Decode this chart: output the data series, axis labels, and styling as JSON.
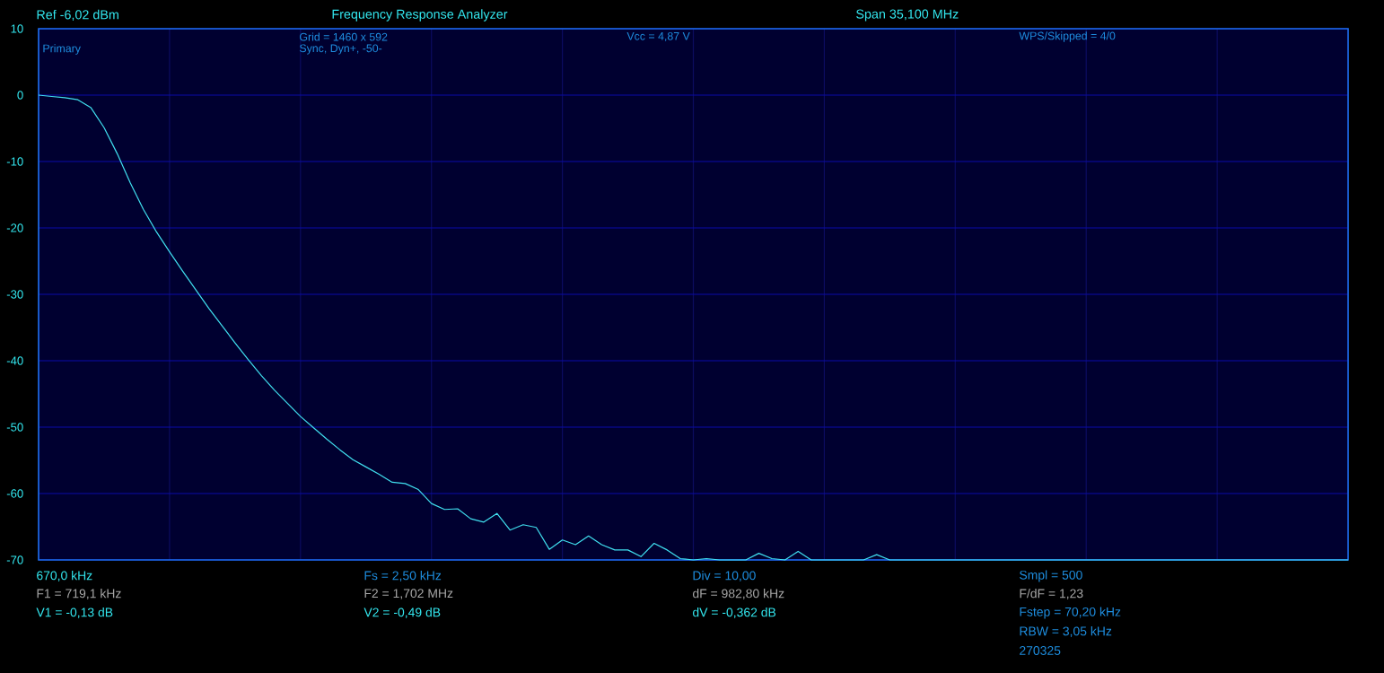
{
  "chart_data": {
    "type": "line",
    "title": "Frequency Response Analyzer",
    "annotations": [
      "Ref  -6,02 dBm",
      "Span 35,100 MHz",
      "Primary",
      "Grid = 1460 x 592",
      "Sync,  Dyn+,  -50-",
      "Vcc = 4,87 V",
      "WPS/Skipped  = 4/0",
      "670,0 kHz",
      "F1 = 719,1 kHz",
      "V1 = -0,13 dB",
      "Fs = 2,50 kHz",
      "F2 = 1,702 MHz",
      "V2 = -0,49 dB",
      "Div = 10,00",
      "dF = 982,80 kHz",
      "dV = -0,362 dB",
      "Smpl = 500",
      "F/dF = 1,23",
      "Fstep = 70,20 kHz",
      "RBW = 3,05 kHz",
      "270325"
    ],
    "categories": [
      null,
      null,
      null,
      null,
      null,
      null,
      null,
      null,
      null,
      null,
      null,
      null,
      null,
      null,
      null,
      null,
      null,
      null,
      null,
      null,
      null,
      null,
      null,
      null,
      null,
      null,
      null,
      null,
      null,
      null,
      null,
      null,
      null,
      null,
      null,
      null,
      null,
      null,
      null,
      null,
      null,
      null,
      null,
      null,
      null,
      null,
      null,
      null,
      null,
      null,
      null,
      null,
      null,
      null,
      null,
      null,
      null,
      null,
      null,
      null,
      null,
      null,
      null,
      null,
      null,
      null,
      null,
      null,
      null,
      null,
      null,
      null,
      null,
      null,
      null,
      null,
      null,
      null,
      null,
      null,
      null,
      null,
      null,
      null,
      null,
      null,
      null,
      null,
      null,
      null,
      null,
      null,
      null,
      null,
      null,
      null,
      null,
      null,
      null,
      null,
      null
    ],
    "ylim": [
      -70,
      10
    ],
    "yticks": [
      -70,
      -60,
      -50,
      -40,
      -30,
      -20,
      -10,
      0,
      10
    ],
    "tick_labels": "y",
    "grid": true,
    "marker": "none",
    "line_style": "solid",
    "series": [
      {
        "color": "#40e0f0",
        "values": [
          0,
          -0.2,
          -0.4,
          -0.7,
          -1.9,
          -4.9,
          -8.8,
          -13.2,
          -17.2,
          -20.6,
          -23.6,
          -26.5,
          -29.3,
          -32.1,
          -34.7,
          -37.3,
          -39.8,
          -42.2,
          -44.4,
          -46.4,
          -48.4,
          -50.1,
          -51.8,
          -53.4,
          -54.9,
          -56.0,
          -57.1,
          -58.3,
          -58.5,
          -59.4,
          -61.5,
          -62.4,
          -62.3,
          -63.8,
          -64.3,
          -63.0,
          -65.5,
          -64.7,
          -65.1,
          -68.4,
          -67.0,
          -67.7,
          -66.4,
          -67.7,
          -68.5,
          -68.5,
          -69.5,
          -67.5,
          -68.5,
          -69.8,
          -70,
          -69.8,
          -70,
          -70,
          -70,
          -69.0,
          -69.8,
          -70,
          -68.7,
          -70,
          -70,
          -70,
          -70,
          -70,
          -69.2,
          -70,
          -70,
          -70,
          -70,
          -70,
          -70,
          -70,
          -70,
          -70,
          -70,
          -70,
          -70,
          -70,
          -70,
          -70,
          -70,
          -70,
          -70,
          -70,
          -70,
          -70,
          -70,
          -70,
          -70,
          -70,
          -70,
          -70,
          -70,
          -70,
          -70,
          -70,
          -70,
          -70,
          -70,
          -70,
          -70
        ]
      }
    ]
  }
}
